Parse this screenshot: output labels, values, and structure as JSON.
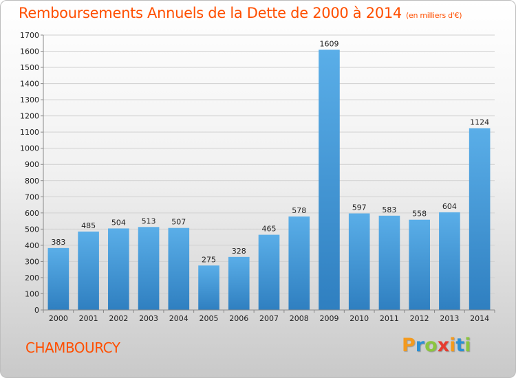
{
  "chart_data": {
    "type": "bar",
    "title": "Remboursements Annuels de la Dette de 2000 à 2014",
    "unit": "(en milliers d'€)",
    "categories": [
      "2000",
      "2001",
      "2002",
      "2003",
      "2004",
      "2005",
      "2006",
      "2007",
      "2008",
      "2009",
      "2010",
      "2011",
      "2012",
      "2013",
      "2014"
    ],
    "values": [
      383,
      485,
      504,
      513,
      507,
      275,
      328,
      465,
      578,
      1609,
      597,
      583,
      558,
      604,
      1124
    ],
    "ylim": [
      0,
      1700
    ],
    "yticks": [
      0,
      100,
      200,
      300,
      400,
      500,
      600,
      700,
      800,
      900,
      1000,
      1100,
      1200,
      1300,
      1400,
      1500,
      1600,
      1700
    ],
    "grid": true,
    "bar_color": "#4ea3e2"
  },
  "footer": {
    "city": "CHAMBOURCY",
    "logo_letters": [
      "P",
      "r",
      "o",
      "x",
      "i",
      "t",
      "i"
    ],
    "logo_colors": [
      "#f39a1e",
      "#2a8fd4",
      "#8bc53f",
      "#e63b2e",
      "#f39a1e",
      "#2a8fd4",
      "#8bc53f"
    ]
  }
}
